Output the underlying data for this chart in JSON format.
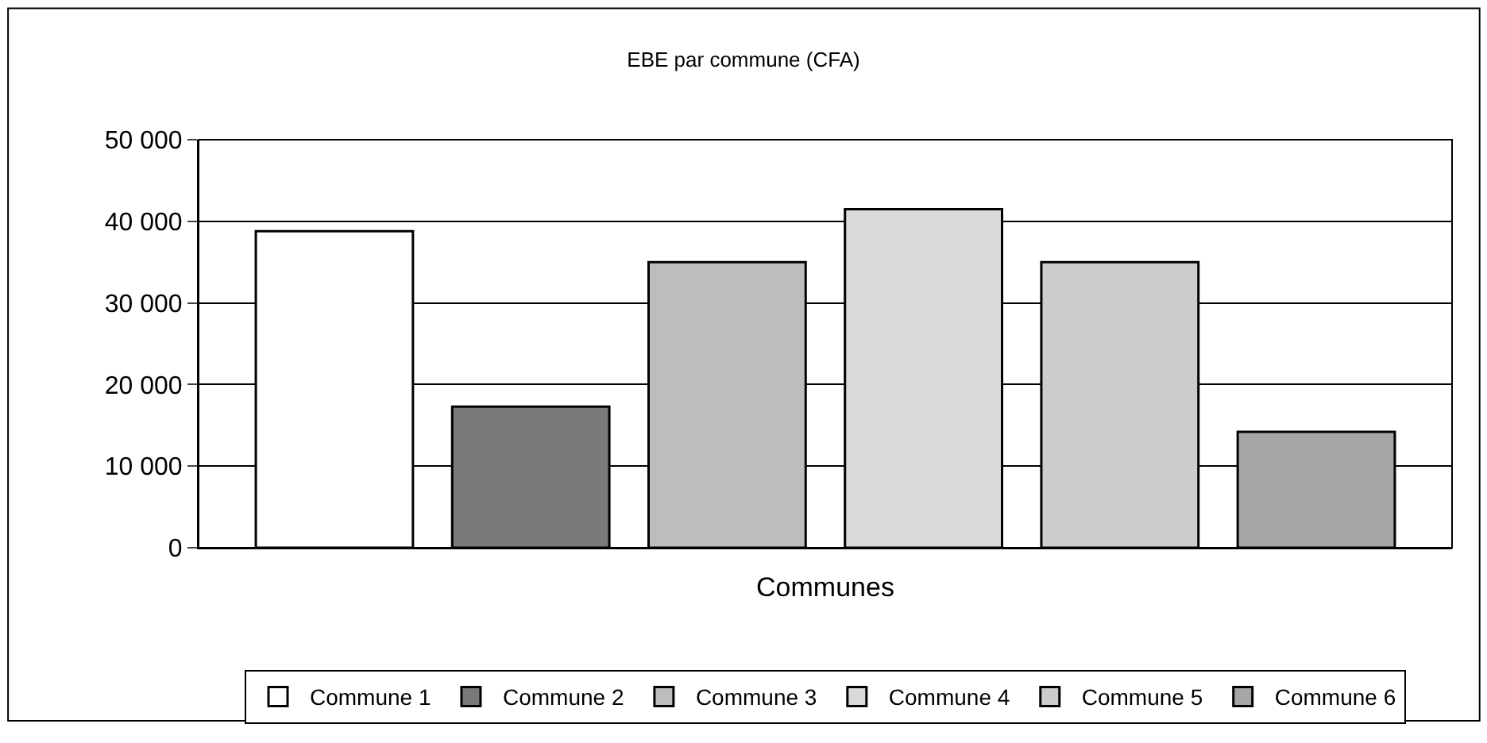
{
  "chart_data": {
    "type": "bar",
    "title": "EBE par commune (CFA)",
    "xlabel": "Communes",
    "categories": [
      null
    ],
    "series": [
      {
        "name": "Commune 1",
        "color": "#ffffff",
        "values": [
          38800
        ]
      },
      {
        "name": "Commune 2",
        "color": "#7a7a7a",
        "values": [
          17300
        ]
      },
      {
        "name": "Commune 3",
        "color": "#bdbdbd",
        "values": [
          35000
        ]
      },
      {
        "name": "Commune 4",
        "color": "#d9d9d9",
        "values": [
          41500
        ]
      },
      {
        "name": "Commune 5",
        "color": "#cccccc",
        "values": [
          35000
        ]
      },
      {
        "name": "Commune 6",
        "color": "#a6a6a6",
        "values": [
          14200
        ]
      }
    ],
    "ylim": [
      0,
      50000
    ],
    "yticks": [
      {
        "value": 0,
        "label": "0"
      },
      {
        "value": 10000,
        "label": "10 000"
      },
      {
        "value": 20000,
        "label": "20 000"
      },
      {
        "value": 30000,
        "label": "30 000"
      },
      {
        "value": 40000,
        "label": "40 000"
      },
      {
        "value": 50000,
        "label": "50 000"
      }
    ],
    "grid": "y",
    "legend": "bottom"
  }
}
